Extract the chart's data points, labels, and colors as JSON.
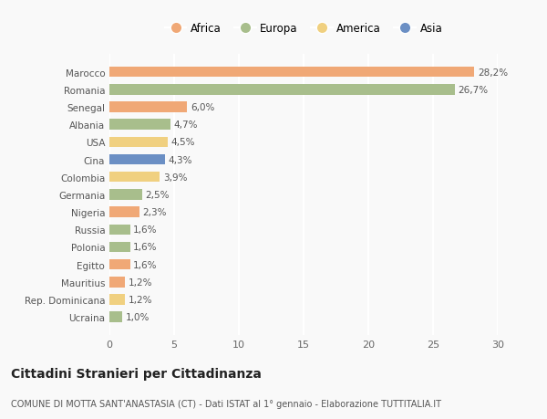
{
  "countries": [
    "Marocco",
    "Romania",
    "Senegal",
    "Albania",
    "USA",
    "Cina",
    "Colombia",
    "Germania",
    "Nigeria",
    "Russia",
    "Polonia",
    "Egitto",
    "Mauritius",
    "Rep. Dominicana",
    "Ucraina"
  ],
  "values": [
    28.2,
    26.7,
    6.0,
    4.7,
    4.5,
    4.3,
    3.9,
    2.5,
    2.3,
    1.6,
    1.6,
    1.6,
    1.2,
    1.2,
    1.0
  ],
  "labels": [
    "28,2%",
    "26,7%",
    "6,0%",
    "4,7%",
    "4,5%",
    "4,3%",
    "3,9%",
    "2,5%",
    "2,3%",
    "1,6%",
    "1,6%",
    "1,6%",
    "1,2%",
    "1,2%",
    "1,0%"
  ],
  "continents": [
    "Africa",
    "Europa",
    "Africa",
    "Europa",
    "America",
    "Asia",
    "America",
    "Europa",
    "Africa",
    "Europa",
    "Europa",
    "Africa",
    "Africa",
    "America",
    "Europa"
  ],
  "colors": {
    "Africa": "#F0A876",
    "Europa": "#A8BE8C",
    "America": "#F0D080",
    "Asia": "#6B8FC4"
  },
  "legend_order": [
    "Africa",
    "Europa",
    "America",
    "Asia"
  ],
  "title": "Cittadini Stranieri per Cittadinanza",
  "subtitle": "COMUNE DI MOTTA SANT'ANASTASIA (CT) - Dati ISTAT al 1° gennaio - Elaborazione TUTTITALIA.IT",
  "xlim": [
    0,
    30
  ],
  "xticks": [
    0,
    5,
    10,
    15,
    20,
    25,
    30
  ],
  "background_color": "#f9f9f9",
  "bar_height": 0.6,
  "label_fontsize": 7.5,
  "ytick_fontsize": 7.5,
  "xtick_fontsize": 8,
  "title_fontsize": 10,
  "subtitle_fontsize": 7
}
